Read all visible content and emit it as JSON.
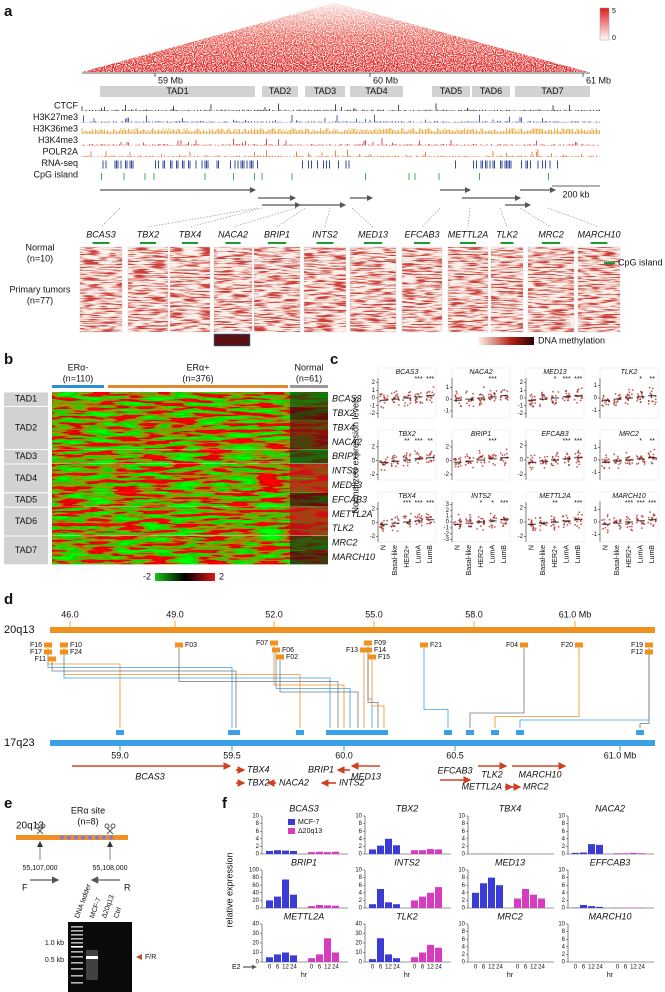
{
  "panel_labels": [
    "a",
    "b",
    "c",
    "d",
    "e",
    "f"
  ],
  "a": {
    "colorbar_max": 5,
    "colorbar_min": 0,
    "axis_ticks": [
      "59 Mb",
      "60 Mb",
      "61 Mb"
    ],
    "tads": [
      "TAD1",
      "TAD2",
      "TAD3",
      "TAD4",
      "TAD5",
      "TAD6",
      "TAD7"
    ],
    "tracks": [
      {
        "name": "CTCF",
        "color": "#222222"
      },
      {
        "name": "H3K27me3",
        "color": "#1f3a93"
      },
      {
        "name": "H3K36me3",
        "color": "#e0a030"
      },
      {
        "name": "H3K4me3",
        "color": "#d42020"
      },
      {
        "name": "POLR2A",
        "color": "#e06a20"
      },
      {
        "name": "RNA-seq",
        "color": "#1f3a93"
      },
      {
        "name": "CpG island",
        "color": "#1a9a30"
      }
    ],
    "scale_bar": "200 kb",
    "genes": [
      "BCAS3",
      "TBX2",
      "TBX4",
      "NACA2",
      "BRIP1",
      "INTS2",
      "MED13",
      "EFCAB3",
      "METTL2A",
      "TLK2",
      "MRC2",
      "MARCH10"
    ],
    "row_labels": [
      "Normal",
      "(n=10)",
      "Primary tumors",
      "(n=77)"
    ],
    "cpg_legend": "CpG island",
    "methylation_legend": "DNA methylation"
  },
  "b": {
    "groups": [
      {
        "name": "ERα-",
        "n": "(n=110)",
        "color": "#2a8fd0"
      },
      {
        "name": "ERα+",
        "n": "(n=376)",
        "color": "#e08a30"
      },
      {
        "name": "Normal",
        "n": "(n=61)",
        "color": "#999999"
      }
    ],
    "rows": [
      {
        "tad": "TAD1",
        "genes": [
          "BCAS3"
        ]
      },
      {
        "tad": "TAD2",
        "genes": [
          "TBX2",
          "TBX4",
          "NACA2"
        ]
      },
      {
        "tad": "TAD3",
        "genes": [
          "BRIP1"
        ]
      },
      {
        "tad": "TAD4",
        "genes": [
          "INTS2",
          "MED13"
        ]
      },
      {
        "tad": "TAD5",
        "genes": [
          "EFCAB3"
        ]
      },
      {
        "tad": "TAD6",
        "genes": [
          "METTL2A",
          "TLK2"
        ]
      },
      {
        "tad": "TAD7",
        "genes": [
          "MRC2",
          "MARCH10"
        ]
      }
    ],
    "scale_min": -2,
    "scale_max": 2
  },
  "c": {
    "ylabel": "Normalized expression levels",
    "groups": [
      "N",
      "Basal-like",
      "HER2+",
      "LumA",
      "LumB"
    ],
    "panels": [
      {
        "gene": "BCAS3",
        "ylim": [
          -2.6,
          2.6
        ],
        "yticks": [
          -2,
          -1,
          0,
          1,
          2
        ],
        "stars": [
          null,
          null,
          null,
          "***",
          "***"
        ]
      },
      {
        "gene": "NACA2",
        "ylim": [
          -1.6,
          1.8
        ],
        "yticks": [
          -1,
          0,
          1
        ],
        "stars": [
          null,
          null,
          null,
          "***",
          null
        ]
      },
      {
        "gene": "MED13",
        "ylim": [
          -2.6,
          2.6
        ],
        "yticks": [
          -2,
          -1,
          0,
          1,
          2
        ],
        "stars": [
          null,
          null,
          "*",
          "***",
          "***"
        ]
      },
      {
        "gene": "TLK2",
        "ylim": [
          -1.6,
          1.6
        ],
        "yticks": [
          -1,
          0,
          1
        ],
        "stars": [
          null,
          null,
          null,
          "*",
          "**"
        ]
      },
      {
        "gene": "TBX2",
        "ylim": [
          -2.8,
          3
        ],
        "yticks": [
          -2,
          0,
          2
        ],
        "stars": [
          null,
          null,
          "**",
          "***",
          "**"
        ]
      },
      {
        "gene": "BRIP1",
        "ylim": [
          -2.8,
          3
        ],
        "yticks": [
          -2,
          0,
          2
        ],
        "stars": [
          null,
          null,
          null,
          "***",
          null
        ]
      },
      {
        "gene": "EFCAB3",
        "ylim": [
          -2.8,
          2.8
        ],
        "yticks": [
          -2,
          0,
          2
        ],
        "stars": [
          null,
          null,
          null,
          "***",
          "***"
        ]
      },
      {
        "gene": "MRC2",
        "ylim": [
          -1.6,
          1.6
        ],
        "yticks": [
          -1,
          0,
          1
        ],
        "stars": [
          null,
          null,
          null,
          "*",
          "**"
        ]
      },
      {
        "gene": "TBX4",
        "ylim": [
          -2.8,
          3
        ],
        "yticks": [
          -2,
          0,
          2
        ],
        "stars": [
          null,
          null,
          "***",
          "***",
          "***"
        ]
      },
      {
        "gene": "INTS2",
        "ylim": [
          -3.4,
          3.4
        ],
        "yticks": [
          -3,
          -2,
          -1,
          0,
          1,
          2,
          3
        ],
        "stars": [
          null,
          null,
          "*",
          "*",
          "***"
        ]
      },
      {
        "gene": "METTL2A",
        "ylim": [
          -2.8,
          2.8
        ],
        "yticks": [
          -2,
          0,
          2
        ],
        "stars": [
          null,
          null,
          "**",
          null,
          "***"
        ]
      },
      {
        "gene": "MARCH10",
        "ylim": [
          -1.6,
          1.6
        ],
        "yticks": [
          -1,
          0,
          1
        ],
        "stars": [
          null,
          null,
          "***",
          "***",
          "***"
        ]
      }
    ]
  },
  "d": {
    "chr_a": {
      "name": "20q13",
      "ticks": [
        "46.0",
        "49.0",
        "52.0",
        "55.0",
        "58.0",
        "61.0 Mb"
      ],
      "fragments": [
        "F16",
        "F17",
        "F11",
        "F10",
        "F24",
        "F03",
        "F07",
        "F06",
        "F02",
        "F13",
        "F09",
        "F14",
        "F15",
        "F21",
        "F04",
        "F20",
        "F19",
        "F12"
      ]
    },
    "chr_b": {
      "name": "17q23",
      "ticks": [
        "59.0",
        "59.5",
        "60.0",
        "60.5",
        "61.0 Mb"
      ]
    },
    "genes": [
      "BCAS3",
      "TBX4",
      "TBX2",
      "NACA2",
      "BRIP1",
      "INTS2",
      "MED13",
      "EFCAB3",
      "TLK2",
      "METTL2A",
      "MRC2",
      "MARCH10"
    ]
  },
  "e": {
    "region": "20q13",
    "site": "ERα site",
    "site_n": "(n=8)",
    "start": "55,107,000",
    "end": "55,108,000",
    "forward": "F",
    "reverse": "R",
    "lanes": [
      "DNA ladder",
      "MCF-7",
      "Δ20q13",
      "Ctrl"
    ],
    "markers": [
      "1.0 kb",
      "0.5 kb"
    ],
    "product": "F/R"
  },
  "f": {
    "ylabel": "relative expression",
    "treatment": "E2",
    "unit": "hr",
    "timepoints": [
      "0",
      "6",
      "12",
      "24"
    ],
    "series": [
      {
        "name": "MCF-7",
        "color": "#3b3bd6"
      },
      {
        "name": "Δ20q13",
        "color": "#d63bc0"
      }
    ],
    "charts": [
      {
        "title": "BCAS3",
        "ylim": [
          0,
          10
        ],
        "yticks": [
          0,
          2,
          4,
          6,
          8,
          10
        ],
        "values": [
          [
            0.8,
            1,
            0.9,
            0.8
          ],
          [
            0.5,
            0.6,
            0.5,
            0.6
          ]
        ]
      },
      {
        "title": "TBX2",
        "ylim": [
          0,
          10
        ],
        "yticks": [
          0,
          2,
          4,
          6,
          8,
          10
        ],
        "values": [
          [
            1.2,
            2.2,
            4,
            2.3
          ],
          [
            1,
            1,
            1.3,
            1.2
          ]
        ]
      },
      {
        "title": "TBX4",
        "ylim": [
          0,
          10
        ],
        "yticks": [
          0,
          2,
          4,
          6,
          8,
          10
        ],
        "values": [
          [
            0.05,
            0.05,
            0.05,
            0.05
          ],
          [
            0.05,
            0.05,
            0.05,
            0.05
          ]
        ]
      },
      {
        "title": "NACA2",
        "ylim": [
          0,
          10
        ],
        "yticks": [
          0,
          2,
          4,
          6,
          8,
          10
        ],
        "values": [
          [
            0.3,
            0.4,
            2.6,
            2.4
          ],
          [
            0.2,
            0.2,
            0.3,
            0.2
          ]
        ]
      },
      {
        "title": "BRIP1",
        "ylim": [
          0,
          100
        ],
        "yticks": [
          0,
          20,
          40,
          60,
          80,
          100
        ],
        "values": [
          [
            20,
            30,
            75,
            35
          ],
          [
            5,
            8,
            7,
            6
          ]
        ]
      },
      {
        "title": "INTS2",
        "ylim": [
          0,
          10
        ],
        "yticks": [
          0,
          2,
          4,
          6,
          8,
          10
        ],
        "values": [
          [
            1,
            5,
            1.5,
            1
          ],
          [
            2,
            3,
            4,
            5.5
          ]
        ]
      },
      {
        "title": "MED13",
        "ylim": [
          0,
          10
        ],
        "yticks": [
          0,
          2,
          4,
          6,
          8,
          10
        ],
        "values": [
          [
            4,
            6.5,
            8,
            6
          ],
          [
            2.5,
            5,
            3.5,
            2.5
          ]
        ]
      },
      {
        "title": "EFFCAB3",
        "ylim": [
          0,
          10
        ],
        "yticks": [
          0,
          2,
          4,
          6,
          8,
          10
        ],
        "values": [
          [
            0.1,
            0.8,
            0.5,
            0.3
          ],
          [
            0.1,
            0.1,
            0.1,
            0.1
          ]
        ]
      },
      {
        "title": "METTL2A",
        "ylim": [
          0,
          40
        ],
        "yticks": [
          0,
          10,
          20,
          30,
          40
        ],
        "values": [
          [
            5,
            8,
            10,
            7
          ],
          [
            4,
            8,
            25,
            10
          ]
        ]
      },
      {
        "title": "TLK2",
        "ylim": [
          0,
          40
        ],
        "yticks": [
          0,
          10,
          20,
          30,
          40
        ],
        "values": [
          [
            3,
            25,
            8,
            4
          ],
          [
            5,
            10,
            18,
            15
          ]
        ]
      },
      {
        "title": "MRC2",
        "ylim": [
          0,
          10
        ],
        "yticks": [
          0,
          2,
          4,
          6,
          8,
          10
        ],
        "values": [
          [
            0,
            0,
            0,
            0
          ],
          [
            0,
            0,
            0,
            0
          ]
        ]
      },
      {
        "title": "MARCH10",
        "ylim": [
          0,
          10
        ],
        "yticks": [
          0,
          2,
          4,
          6,
          8,
          10
        ],
        "values": [
          [
            0,
            0,
            0,
            0
          ],
          [
            0,
            0,
            0,
            0
          ]
        ]
      }
    ]
  }
}
